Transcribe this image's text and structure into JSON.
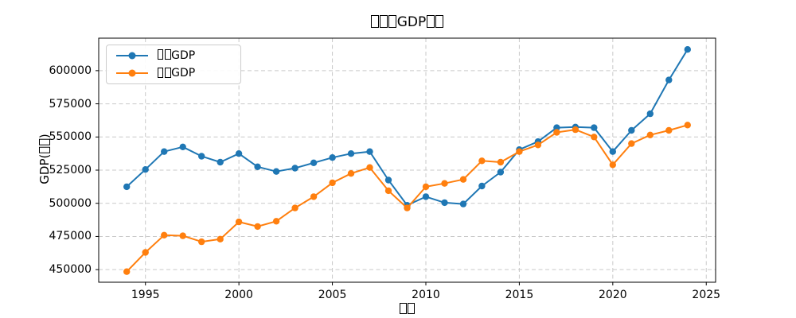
{
  "figure": {
    "background": "#ffffff",
    "spine_color": "#000000",
    "grid_color": "#c9c9c9"
  },
  "chart_data": {
    "type": "line",
    "title": "□□□GDP□□",
    "xlabel": "□□",
    "ylabel": "GDP(□□)",
    "x": [
      1994,
      1995,
      1996,
      1997,
      1998,
      1999,
      2000,
      2001,
      2002,
      2003,
      2004,
      2005,
      2006,
      2007,
      2008,
      2009,
      2010,
      2011,
      2012,
      2013,
      2014,
      2015,
      2016,
      2017,
      2018,
      2019,
      2020,
      2021,
      2022,
      2023,
      2024
    ],
    "series": [
      {
        "name": "□□GDP",
        "color": "#1f77b4",
        "marker": "circle",
        "values": [
          512500,
          525500,
          539000,
          542500,
          535500,
          531000,
          537500,
          527500,
          524000,
          526500,
          530500,
          534500,
          537500,
          539000,
          517500,
          498500,
          505000,
          500500,
          499500,
          513000,
          523500,
          540500,
          546500,
          557000,
          557500,
          557000,
          539000,
          555000,
          567500,
          593000,
          616000
        ]
      },
      {
        "name": "□□GDP",
        "color": "#ff7f0e",
        "marker": "circle",
        "values": [
          448500,
          463000,
          476000,
          475500,
          471000,
          473000,
          486000,
          482500,
          486500,
          496500,
          505000,
          515500,
          522500,
          527000,
          509500,
          496500,
          512500,
          515000,
          518000,
          532000,
          531000,
          539000,
          544000,
          553500,
          555500,
          550000,
          529000,
          545000,
          551500,
          555000,
          559000
        ]
      }
    ],
    "xlim": [
      1992.5,
      2025.5
    ],
    "ylim": [
      440500,
      624500
    ],
    "xticks": [
      1995,
      2000,
      2005,
      2010,
      2015,
      2020,
      2025
    ],
    "yticks": [
      450000,
      475000,
      500000,
      525000,
      550000,
      575000,
      600000
    ],
    "grid": true,
    "grid_style": "dashed",
    "legend_position": "upper left"
  }
}
